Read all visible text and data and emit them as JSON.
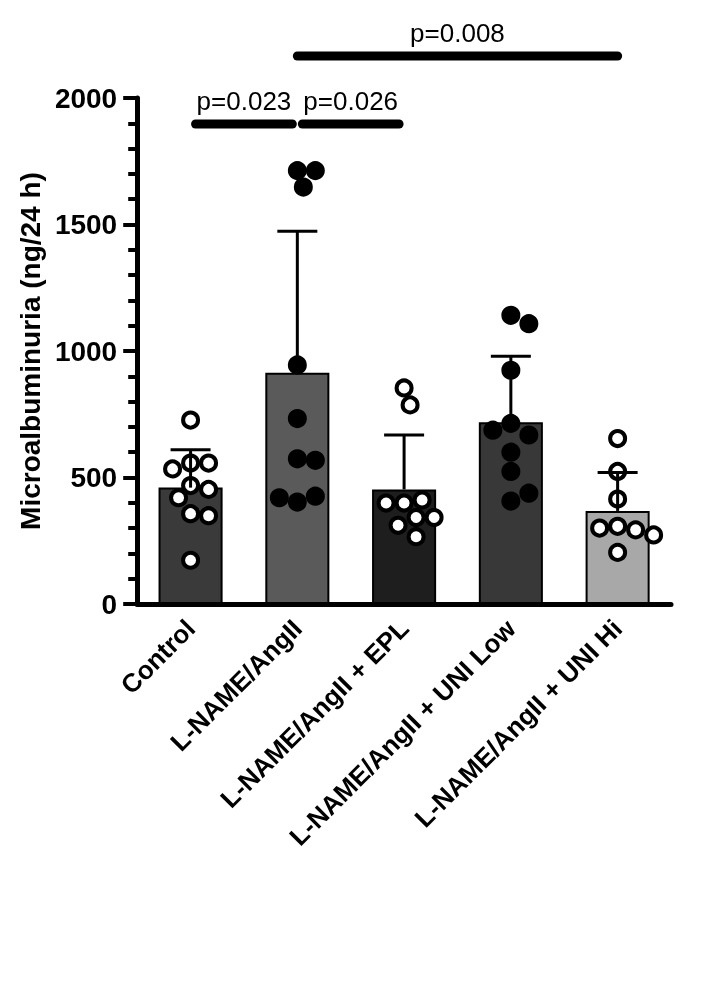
{
  "chart_data": {
    "type": "bar",
    "ylabel": "Microalbuminuria (ng/24 h)",
    "categories": [
      "Control",
      "L-NAME/AngII",
      "L-NAME/AngII + EPL",
      "L-NAME/AngII + UNI Low",
      "L-NAME/AngII + UNI Hi"
    ],
    "values": [
      460,
      914,
      453,
      718,
      368
    ],
    "colors": [
      "#3a3a3a",
      "#5a5a5a",
      "#1e1e1e",
      "#383838",
      "#a8a8a8"
    ],
    "errors": [
      [
        460,
        610
      ],
      [
        914,
        1473
      ],
      [
        453,
        668
      ],
      [
        718,
        979
      ],
      [
        368,
        520
      ]
    ],
    "series": [
      {
        "type": "scatter",
        "color": "#ffffff",
        "x": [
          "Control",
          "Control",
          "Control",
          "Control",
          "Control",
          "Control",
          "Control",
          "Control",
          "Control",
          "Control",
          "L-NAME/AngII + EPL",
          "L-NAME/AngII + EPL",
          "L-NAME/AngII + EPL",
          "L-NAME/AngII + EPL",
          "L-NAME/AngII + EPL",
          "L-NAME/AngII + EPL",
          "L-NAME/AngII + EPL",
          "L-NAME/AngII + EPL",
          "L-NAME/AngII + EPL",
          "L-NAME/AngII + UNI Hi",
          "L-NAME/AngII + UNI Hi",
          "L-NAME/AngII + UNI Hi",
          "L-NAME/AngII + UNI Hi",
          "L-NAME/AngII + UNI Hi",
          "L-NAME/AngII + UNI Hi",
          "L-NAME/AngII + UNI Hi",
          "L-NAME/AngII + UNI Hi"
        ],
        "values": [
          727,
          557,
          557,
          534,
          468,
          453,
          420,
          357,
          349,
          173,
          854,
          787,
          399,
          411,
          399,
          342,
          342,
          311,
          266,
          654,
          524,
          415,
          307,
          293,
          300,
          273,
          204
        ]
      },
      {
        "type": "scatter",
        "color": "#000000",
        "x": [
          "L-NAME/AngII",
          "L-NAME/AngII",
          "L-NAME/AngII",
          "L-NAME/AngII",
          "L-NAME/AngII",
          "L-NAME/AngII",
          "L-NAME/AngII",
          "L-NAME/AngII",
          "L-NAME/AngII",
          "L-NAME/AngII",
          "L-NAME/AngII + UNI Low",
          "L-NAME/AngII + UNI Low",
          "L-NAME/AngII + UNI Low",
          "L-NAME/AngII + UNI Low",
          "L-NAME/AngII + UNI Low",
          "L-NAME/AngII + UNI Low",
          "L-NAME/AngII + UNI Low",
          "L-NAME/AngII + UNI Low",
          "L-NAME/AngII + UNI Low",
          "L-NAME/AngII + UNI Low"
        ],
        "values": [
          1713,
          1713,
          1648,
          945,
          733,
          574,
          568,
          403,
          426,
          420,
          1141,
          1108,
          924,
          714,
          668,
          687,
          600,
          524,
          407,
          438
        ]
      }
    ],
    "ylim": [
      0,
      2000
    ],
    "yticks": [
      0,
      500,
      1000,
      1500,
      2000
    ],
    "grid": false,
    "marker": "circle",
    "annotations": [
      "p=0.023",
      "p=0.026",
      "p=0.008"
    ]
  }
}
